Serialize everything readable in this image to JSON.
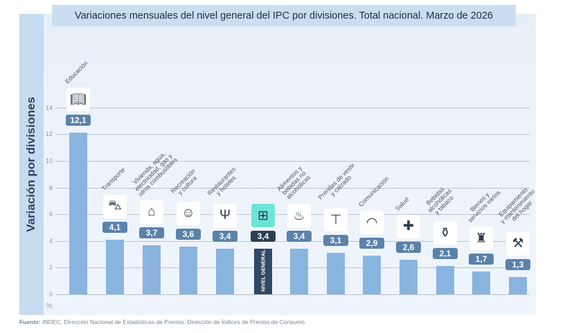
{
  "title": "Variaciones mensuales del nivel general del IPC por divisiones. Total nacional. Marzo de 2026",
  "source": {
    "label": "Fuente:",
    "text": " INDEC, Dirección Nacional de Estadísticas de Precios. Dirección de Índices de Precios de Consumo."
  },
  "colors": {
    "bar": "#8ab4e0",
    "general_bar": "#2f4a66",
    "badge": "#5b82ab",
    "general_icon": "#6fe3d6"
  },
  "chart_data": {
    "type": "bar",
    "title": "Variaciones mensuales del nivel general del IPC por divisiones. Total nacional. Marzo de 2026",
    "ylabel": "Variación por divisiones",
    "unit": "%",
    "ylim": [
      0,
      14
    ],
    "yticks": [
      "0",
      "2",
      "4",
      "6",
      "8",
      "10",
      "12",
      "14"
    ],
    "grid": true,
    "categories": [
      "Educación",
      "Transporte",
      "Vivienda, agua,\nelectricidad, gas y\notros combustibles",
      "Recreación\ny cultura",
      "Restaurantes\ny hoteles",
      "NIVEL GENERAL",
      "Alimentos y\nbebidas no\nalcohólicas",
      "Prendas de vestir\ny calzado",
      "Comunicación",
      "Salud",
      "Bebidas\nalcohólicas\ny tabaco",
      "Bienes y\nservicios varios",
      "Equipamiento\ny mantenimiento\ndel hogar"
    ],
    "values": [
      12.1,
      4.1,
      3.7,
      3.6,
      3.4,
      3.4,
      3.4,
      3.1,
      2.9,
      2.6,
      2.1,
      1.7,
      1.3
    ],
    "value_labels": [
      "12,1",
      "4,1",
      "3,7",
      "3,6",
      "3,4",
      "3,4",
      "3,4",
      "3,1",
      "2,9",
      "2,6",
      "2,1",
      "1,7",
      "1,3"
    ],
    "icons": [
      "book-icon",
      "car-icon",
      "house-icon",
      "theater-icon",
      "restaurant-icon",
      "basket-icon",
      "food-icon",
      "shirt-icon",
      "wifi-icon",
      "plus-icon",
      "bottle-icon",
      "spray-icon",
      "tools-icon"
    ],
    "highlight_index": 5
  }
}
